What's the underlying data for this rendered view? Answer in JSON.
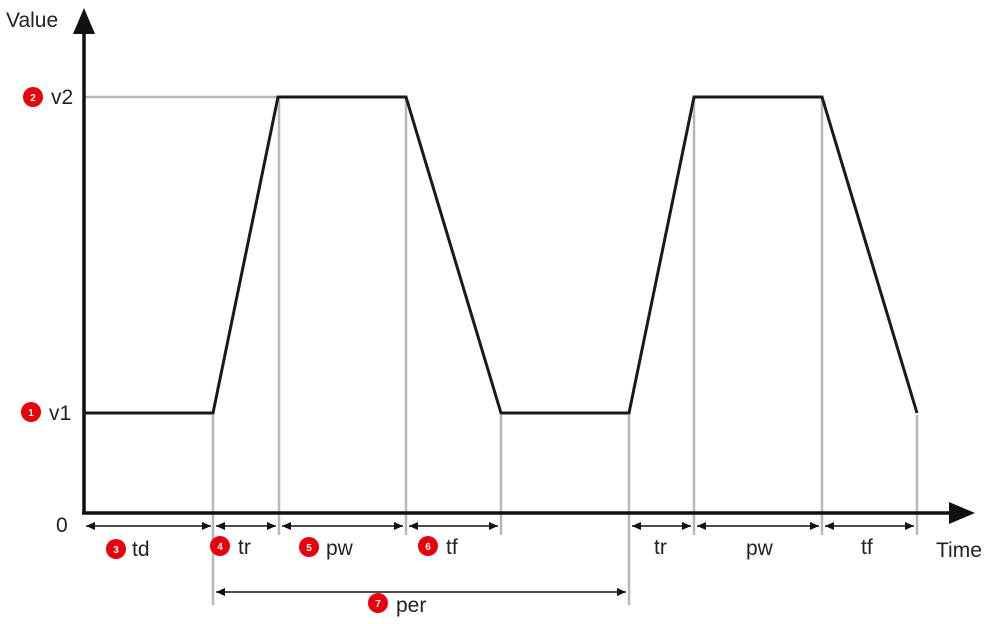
{
  "axes": {
    "y_title": "Value",
    "x_title": "Time",
    "origin": "0",
    "v1": "v1",
    "v2": "v2"
  },
  "intervals": {
    "td": "td",
    "tr": "tr",
    "pw": "pw",
    "tf": "tf",
    "per": "per"
  },
  "badges": [
    "1",
    "2",
    "3",
    "4",
    "5",
    "6",
    "7"
  ],
  "colors": {
    "waveform": "#1a1a1a",
    "guides": "#b8b8b8",
    "badge": "#e8000d",
    "axis": "#111111"
  }
}
